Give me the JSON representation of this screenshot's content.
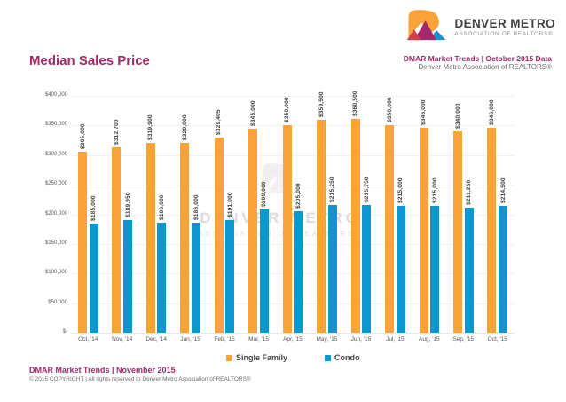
{
  "header": {
    "logo": {
      "name": "DENVER METRO",
      "tagline": "ASSOCIATION OF REALTORS®"
    },
    "right_line1": "DMAR Market Trends | October 2015 Data",
    "right_line2": "Denver Metro Association of REALTORS®"
  },
  "watermark": {
    "line1": "DENVER METRO",
    "line2": "ASSOCIATION OF REALTORS®"
  },
  "chart_data": {
    "type": "bar",
    "title": "Median Sales Price",
    "categories": [
      "Oct, '14",
      "Nov, '14",
      "Dec, '14",
      "Jan, '15",
      "Feb, '15",
      "Mar, '15",
      "Apr, '15",
      "May, '15",
      "Jun, '15",
      "Jul, '15",
      "Aug, '15",
      "Sep, '15",
      "Oct, '15"
    ],
    "series": [
      {
        "name": "Single Family",
        "color": "#F9A338",
        "values": [
          305000,
          312700,
          319900,
          320000,
          329405,
          345000,
          350000,
          359500,
          360500,
          350000,
          346000,
          340000,
          346000
        ],
        "labels": [
          "$305,000",
          "$312,700",
          "$319,900",
          "$320,000",
          "$329,405",
          "$345,000",
          "$350,000",
          "$359,500",
          "$360,500",
          "$350,000",
          "$346,000",
          "$340,000",
          "$346,000"
        ]
      },
      {
        "name": "Condo",
        "color": "#0E96CE",
        "values": [
          185000,
          189950,
          186000,
          186000,
          191000,
          208000,
          205000,
          215250,
          215750,
          215000,
          215000,
          211250,
          214500
        ],
        "labels": [
          "$185,000",
          "$189,950",
          "$186,000",
          "$186,000",
          "$191,000",
          "$208,000",
          "$205,000",
          "$215,250",
          "$215,750",
          "$215,000",
          "$215,000",
          "$211,250",
          "$214,500"
        ]
      }
    ],
    "xlabel": "",
    "ylabel": "",
    "ylim": [
      0,
      400000
    ],
    "ytick_step": 50000,
    "ytick_labels": [
      "$-",
      "$50,000",
      "$100,000",
      "$150,000",
      "$200,000",
      "$250,000",
      "$300,000",
      "$350,000",
      "$400,000"
    ],
    "grid": "horizontal",
    "legend_position": "bottom"
  },
  "footer": {
    "line1": "DMAR Market Trends | November 2015",
    "line2": "© 2015 COPYRIGHT | All rights reserved to Denver Metro Association of REALTORS®"
  },
  "colors": {
    "accent_magenta": "#A3286A",
    "single_family": "#F9A338",
    "condo": "#0E96CE",
    "logo_red": "#D23F44",
    "logo_blue": "#1E90CE"
  }
}
